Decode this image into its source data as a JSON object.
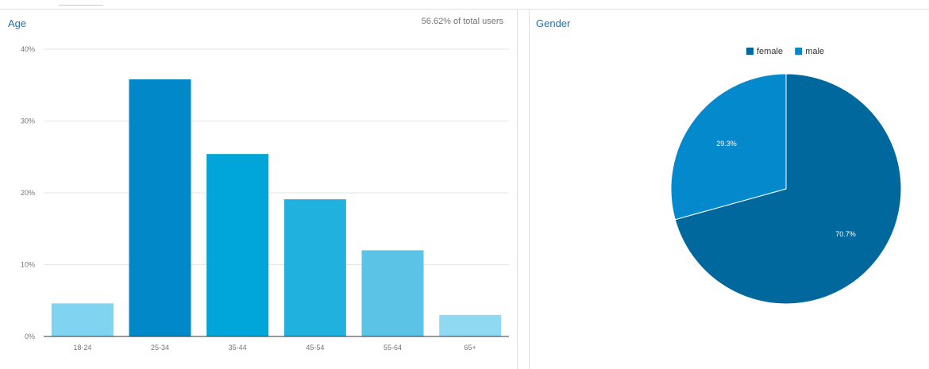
{
  "age_panel": {
    "title": "Age",
    "meta": "56.62% of total users"
  },
  "gender_panel": {
    "title": "Gender"
  },
  "chart_data": [
    {
      "type": "bar",
      "title": "Age",
      "categories": [
        "18-24",
        "25-34",
        "35-44",
        "45-54",
        "55-64",
        "65+"
      ],
      "values": [
        4.6,
        35.8,
        25.4,
        19.1,
        12.0,
        3.0
      ],
      "y_ticks": [
        "0%",
        "10%",
        "20%",
        "30%",
        "40%"
      ],
      "ylim": [
        0,
        40
      ],
      "unit": "%",
      "grid": true,
      "colors": [
        "#80d4f1",
        "#0088c8",
        "#00a5d9",
        "#21b1df",
        "#5ac3e6",
        "#8fd9f2"
      ]
    },
    {
      "type": "pie",
      "title": "Gender",
      "legend": "top-center",
      "slices": [
        {
          "name": "female",
          "value": 70.7,
          "label": "70.7%",
          "color": "#00689c"
        },
        {
          "name": "male",
          "value": 29.3,
          "label": "29.3%",
          "color": "#0389cc"
        }
      ]
    }
  ]
}
